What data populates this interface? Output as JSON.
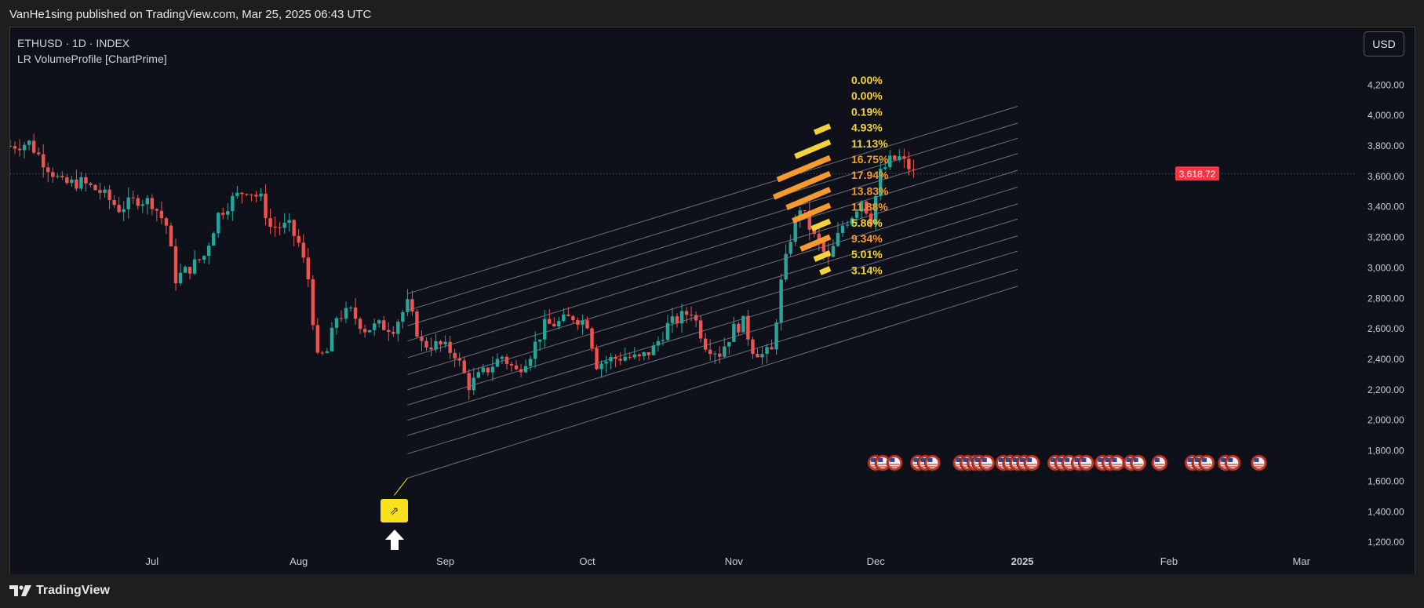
{
  "header": {
    "publisher_line": "VanHe1sing published on TradingView.com, Mar 25, 2025 06:43 UTC"
  },
  "legend": {
    "symbol_line": "ETHUSD · 1D · INDEX",
    "indicator_line": "LR VolumeProfile [ChartPrime]"
  },
  "currency_button": "USD",
  "footer": {
    "brand": "TradingView"
  },
  "anchor_icon": "diagonal-arrow-icon",
  "colors": {
    "background": "#0e111a",
    "up": "#26a69a",
    "down": "#ef5350",
    "price_line": "#f23645",
    "channel_lines": "#8a8e99",
    "pct_yellow": "#f5d23b",
    "pct_orange": "#f59a2e",
    "pct_darkorange": "#f07a2a"
  },
  "chart_data": {
    "type": "candlestick",
    "title": "",
    "symbol": "ETHUSD",
    "interval": "1D",
    "y_axis": {
      "range": [
        1180,
        4320
      ],
      "ticks": [
        1200,
        1400,
        1600,
        1800,
        2000,
        2200,
        2400,
        2600,
        2800,
        3000,
        3200,
        3400,
        3600,
        3800,
        4000,
        4200
      ],
      "tick_labels": [
        "1,200.00",
        "1,400.00",
        "1,600.00",
        "1,800.00",
        "2,000.00",
        "2,200.00",
        "2,400.00",
        "2,600.00",
        "2,800.00",
        "3,000.00",
        "3,200.00",
        "3,400.00",
        "3,600.00",
        "3,800.00",
        "4,000.00",
        "4,200.00"
      ]
    },
    "x_axis": {
      "tick_labels": [
        "Jul",
        "Aug",
        "Sep",
        "Oct",
        "Nov",
        "Dec",
        "2025",
        "Feb",
        "Mar"
      ],
      "bold_labels": [
        "2025"
      ]
    },
    "current_price": 3618.72,
    "current_price_label": "3,618.72",
    "anchor_point": {
      "date": "2024-08-24",
      "price": 1620
    },
    "price_path": [
      [
        "2024-06-01",
        3800
      ],
      [
        "2024-06-05",
        3820
      ],
      [
        "2024-06-08",
        3700
      ],
      [
        "2024-06-12",
        3550
      ],
      [
        "2024-06-16",
        3560
      ],
      [
        "2024-06-20",
        3500
      ],
      [
        "2024-06-24",
        3390
      ],
      [
        "2024-06-28",
        3450
      ],
      [
        "2024-07-01",
        3430
      ],
      [
        "2024-07-04",
        3280
      ],
      [
        "2024-07-06",
        2930
      ],
      [
        "2024-07-09",
        3000
      ],
      [
        "2024-07-12",
        3080
      ],
      [
        "2024-07-15",
        3350
      ],
      [
        "2024-07-18",
        3450
      ],
      [
        "2024-07-21",
        3520
      ],
      [
        "2024-07-24",
        3450
      ],
      [
        "2024-07-26",
        3270
      ],
      [
        "2024-07-30",
        3270
      ],
      [
        "2024-08-01",
        3160
      ],
      [
        "2024-08-03",
        2930
      ],
      [
        "2024-08-05",
        2400
      ],
      [
        "2024-08-07",
        2450
      ],
      [
        "2024-08-09",
        2680
      ],
      [
        "2024-08-12",
        2710
      ],
      [
        "2024-08-15",
        2600
      ],
      [
        "2024-08-18",
        2620
      ],
      [
        "2024-08-21",
        2610
      ],
      [
        "2024-08-24",
        2760
      ],
      [
        "2024-08-27",
        2500
      ],
      [
        "2024-08-31",
        2490
      ],
      [
        "2024-09-03",
        2440
      ],
      [
        "2024-09-06",
        2230
      ],
      [
        "2024-09-09",
        2310
      ],
      [
        "2024-09-13",
        2420
      ],
      [
        "2024-09-16",
        2320
      ],
      [
        "2024-09-19",
        2440
      ],
      [
        "2024-09-22",
        2620
      ],
      [
        "2024-09-25",
        2640
      ],
      [
        "2024-09-28",
        2680
      ],
      [
        "2024-10-01",
        2640
      ],
      [
        "2024-10-03",
        2370
      ],
      [
        "2024-10-06",
        2400
      ],
      [
        "2024-10-09",
        2420
      ],
      [
        "2024-10-12",
        2400
      ],
      [
        "2024-10-15",
        2470
      ],
      [
        "2024-10-18",
        2620
      ],
      [
        "2024-10-21",
        2680
      ],
      [
        "2024-10-23",
        2720
      ],
      [
        "2024-10-26",
        2500
      ],
      [
        "2024-10-29",
        2440
      ],
      [
        "2024-11-01",
        2600
      ],
      [
        "2024-11-03",
        2640
      ],
      [
        "2024-11-05",
        2470
      ],
      [
        "2024-11-07",
        2430
      ],
      [
        "2024-11-09",
        2450
      ],
      [
        "2024-11-11",
        2900
      ],
      [
        "2024-11-13",
        3200
      ],
      [
        "2024-11-15",
        3400
      ],
      [
        "2024-11-18",
        3200
      ],
      [
        "2024-11-21",
        3050
      ],
      [
        "2024-11-24",
        3280
      ],
      [
        "2024-11-26",
        3350
      ],
      [
        "2024-11-28",
        3450
      ],
      [
        "2024-11-30",
        3320
      ],
      [
        "2024-12-02",
        3620
      ],
      [
        "2024-12-04",
        3700
      ],
      [
        "2024-12-06",
        3720
      ],
      [
        "2024-12-08",
        3660
      ],
      [
        "2024-12-09",
        3620
      ]
    ],
    "regression_channel": {
      "start_date": "2024-08-24",
      "end_date": "2024-12-31",
      "lines_at_start": [
        2830,
        2720,
        2620,
        2520,
        2410,
        2300,
        2200,
        2100,
        2000,
        1900,
        1780,
        1620
      ],
      "lines_at_end": [
        4060,
        3950,
        3850,
        3750,
        3640,
        3530,
        3420,
        3320,
        3210,
        3110,
        2990,
        2880
      ]
    },
    "volume_profile": {
      "labels": [
        "0.00%",
        "0.00%",
        "0.19%",
        "4.93%",
        "11.13%",
        "16.75%",
        "17.94%",
        "13.83%",
        "11.88%",
        "5.86%",
        "9.34%",
        "5.01%",
        "3.14%"
      ],
      "values": [
        0.0,
        0.0,
        0.19,
        4.93,
        11.13,
        16.75,
        17.94,
        13.83,
        11.88,
        5.86,
        9.34,
        5.01,
        3.14
      ],
      "label_colors": [
        "#f5d23b",
        "#f5d23b",
        "#f5d23b",
        "#f5d23b",
        "#f5d23b",
        "#f59a2e",
        "#f59a2e",
        "#f59a2e",
        "#f59a2e",
        "#f5d23b",
        "#f59a2e",
        "#f5d23b",
        "#f5d23b"
      ]
    },
    "event_flag_icons": "us-flag-icon",
    "event_flag_groups": [
      {
        "date": "2024-12-01",
        "count": 2
      },
      {
        "date": "2024-12-05",
        "count": 1
      },
      {
        "date": "2024-12-10",
        "count": 3
      },
      {
        "date": "2024-12-19",
        "count": 3
      },
      {
        "date": "2024-12-23",
        "count": 2
      },
      {
        "date": "2024-12-28",
        "count": 4
      },
      {
        "date": "2025-01-03",
        "count": 1
      },
      {
        "date": "2025-01-08",
        "count": 3
      },
      {
        "date": "2025-01-13",
        "count": 2
      },
      {
        "date": "2025-01-18",
        "count": 3
      },
      {
        "date": "2025-01-24",
        "count": 2
      },
      {
        "date": "2025-01-30",
        "count": 1
      },
      {
        "date": "2025-02-06",
        "count": 3
      },
      {
        "date": "2025-02-13",
        "count": 2
      },
      {
        "date": "2025-02-20",
        "count": 1
      }
    ]
  }
}
